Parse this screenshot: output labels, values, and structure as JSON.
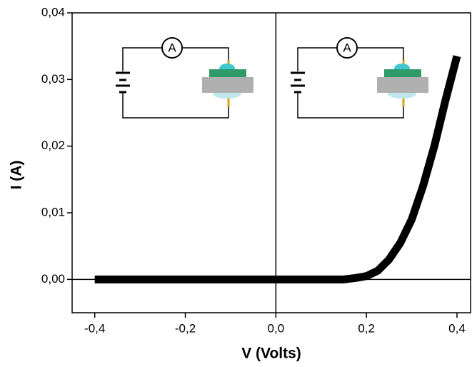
{
  "chart_data": {
    "type": "line",
    "xlabel": "V (Volts)",
    "ylabel": "I (A)",
    "x": [
      -0.4,
      -0.35,
      -0.3,
      -0.25,
      -0.2,
      -0.15,
      -0.1,
      -0.05,
      0,
      0.05,
      0.1,
      0.15,
      0.175,
      0.2,
      0.225,
      0.25,
      0.275,
      0.3,
      0.325,
      0.35,
      0.375,
      0.4
    ],
    "series": [
      {
        "color": "#000000",
        "values": [
          0,
          0,
          0,
          0,
          0,
          0,
          0,
          0,
          0,
          0,
          0,
          0,
          0.0002,
          0.0005,
          0.0013,
          0.003,
          0.0055,
          0.009,
          0.014,
          0.02,
          0.027,
          0.0335
        ]
      }
    ],
    "xlim": [
      -0.45,
      0.43
    ],
    "ylim": [
      -0.005,
      0.04
    ],
    "xticks": [
      {
        "value": -0.4,
        "label": "-0,4"
      },
      {
        "value": -0.2,
        "label": "-0,2"
      },
      {
        "value": 0,
        "label": "0,0"
      },
      {
        "value": 0.2,
        "label": "0,2"
      },
      {
        "value": 0.4,
        "label": "0,4"
      }
    ],
    "yticks": [
      {
        "value": 0,
        "label": "0,00"
      },
      {
        "value": 0.01,
        "label": "0,01"
      },
      {
        "value": 0.02,
        "label": "0,02"
      },
      {
        "value": 0.03,
        "label": "0,03"
      },
      {
        "value": 0.04,
        "label": "0,04"
      }
    ],
    "annotations": [
      "A",
      "A"
    ]
  }
}
